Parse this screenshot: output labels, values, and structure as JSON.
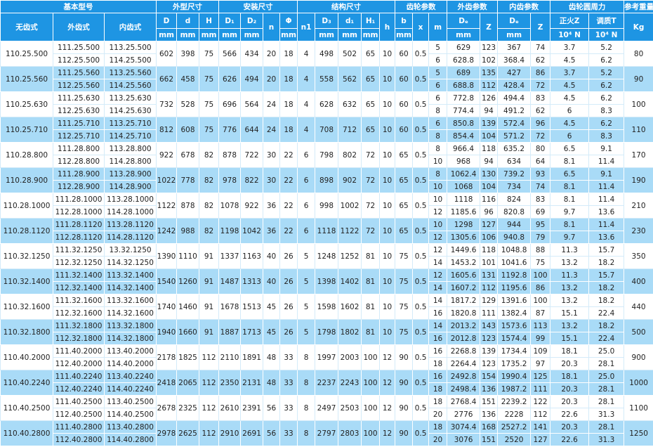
{
  "header": {
    "groups": [
      "基本型号",
      "外型尺寸",
      "安装尺寸",
      "结构尺寸",
      "齿轮参数",
      "外齿参数",
      "内齿参数",
      "齿轮圆周力",
      "参考重量"
    ],
    "columns": [
      "无齿式",
      "外齿式",
      "内齿式",
      "D",
      "d",
      "H",
      "D₁",
      "D₂",
      "n",
      "Φ",
      "n1",
      "D₃",
      "d₁",
      "H₁",
      "h",
      "b",
      "x",
      "m",
      "Dₑ",
      "Z",
      "Dₑ",
      "Z",
      "正火Z",
      "调质T",
      "Kg"
    ],
    "units": [
      "mm",
      "mm",
      "mm",
      "mm",
      "mm",
      "mm",
      "mm",
      "mm",
      "mm",
      "mm",
      "mm",
      "mm",
      "10⁴ N",
      "10⁴ N"
    ]
  },
  "rows": [
    [
      "110.25.500",
      [
        "111.25.500",
        "112.25.500"
      ],
      [
        "113.25.500",
        "114.25.500"
      ],
      "602",
      "398",
      "75",
      "566",
      "434",
      "20",
      "18",
      "4",
      "498",
      "502",
      "65",
      "10",
      "60",
      "0.5",
      [
        "5",
        "6"
      ],
      [
        "629",
        "628.8"
      ],
      [
        "123",
        "102"
      ],
      [
        "367",
        "368.4"
      ],
      [
        "74",
        "62"
      ],
      [
        "3.7",
        "4.5"
      ],
      [
        "5.2",
        "6.2"
      ],
      "80"
    ],
    [
      "110.25.560",
      [
        "111.25.560",
        "112.25.560"
      ],
      [
        "113.25.560",
        "114.25.560"
      ],
      "662",
      "458",
      "75",
      "626",
      "494",
      "20",
      "18",
      "4",
      "558",
      "562",
      "65",
      "10",
      "60",
      "0.5",
      [
        "5",
        "6"
      ],
      [
        "689",
        "688.8"
      ],
      [
        "135",
        "112"
      ],
      [
        "427",
        "428.4"
      ],
      [
        "86",
        "72"
      ],
      [
        "3.7",
        "4.5"
      ],
      [
        "5.2",
        "6.2"
      ],
      "90"
    ],
    [
      "110.25.630",
      [
        "111.25.630",
        "112.25.630"
      ],
      [
        "113.25.630",
        "114.25.630"
      ],
      "732",
      "528",
      "75",
      "696",
      "564",
      "24",
      "18",
      "4",
      "628",
      "632",
      "65",
      "10",
      "60",
      "0.5",
      [
        "6",
        "8"
      ],
      [
        "772.8",
        "774.4"
      ],
      [
        "126",
        "94"
      ],
      [
        "494.4",
        "491.2"
      ],
      [
        "83",
        "62"
      ],
      [
        "4.5",
        "6"
      ],
      [
        "6.2",
        "8.3"
      ],
      "100"
    ],
    [
      "110.25.710",
      [
        "111.25.710",
        "112.25.710"
      ],
      [
        "113.25.710",
        "114.25.710"
      ],
      "812",
      "608",
      "75",
      "776",
      "644",
      "24",
      "18",
      "4",
      "708",
      "712",
      "65",
      "10",
      "60",
      "0.5",
      [
        "6",
        "8"
      ],
      [
        "850.8",
        "854.4"
      ],
      [
        "139",
        "104"
      ],
      [
        "572.4",
        "571.2"
      ],
      [
        "96",
        "72"
      ],
      [
        "4.5",
        "6"
      ],
      [
        "6.2",
        "8.3"
      ],
      "110"
    ],
    [
      "110.28.800",
      [
        "111.28.800",
        "112.28.800"
      ],
      [
        "113.28.800",
        "114.28.800"
      ],
      "922",
      "678",
      "82",
      "878",
      "722",
      "30",
      "22",
      "6",
      "798",
      "802",
      "72",
      "10",
      "65",
      "0.5",
      [
        "8",
        "10"
      ],
      [
        "966.4",
        "968"
      ],
      [
        "118",
        "94"
      ],
      [
        "635.2",
        "634"
      ],
      [
        "80",
        "64"
      ],
      [
        "6.5",
        "8.1"
      ],
      [
        "9.1",
        "11.4"
      ],
      "170"
    ],
    [
      "110.28.900",
      [
        "111.28.900",
        "112.28.900"
      ],
      [
        "113.28.900",
        "114.28.900"
      ],
      "1022",
      "778",
      "82",
      "978",
      "822",
      "30",
      "22",
      "6",
      "898",
      "902",
      "72",
      "10",
      "65",
      "0.5",
      [
        "8",
        "10"
      ],
      [
        "1062.4",
        "1068"
      ],
      [
        "130",
        "104"
      ],
      [
        "739.2",
        "734"
      ],
      [
        "93",
        "74"
      ],
      [
        "6.5",
        "8.1"
      ],
      [
        "9.1",
        "11.4"
      ],
      "190"
    ],
    [
      "110.28.1000",
      [
        "111.28.1000",
        "112.28.1000"
      ],
      [
        "113.28.1000",
        "114.28.1000"
      ],
      "1122",
      "878",
      "82",
      "1078",
      "922",
      "36",
      "22",
      "6",
      "998",
      "1002",
      "72",
      "10",
      "65",
      "0.5",
      [
        "10",
        "12"
      ],
      [
        "1118",
        "1185.6"
      ],
      [
        "116",
        "96"
      ],
      [
        "824",
        "820.8"
      ],
      [
        "83",
        "69"
      ],
      [
        "8.1",
        "9.7"
      ],
      [
        "11.4",
        "13.6"
      ],
      "210"
    ],
    [
      "110.28.1120",
      [
        "111.28.1120",
        "112.28.1120"
      ],
      [
        "113.28.1120",
        "114.28.1120"
      ],
      "1242",
      "988",
      "82",
      "1198",
      "1042",
      "36",
      "22",
      "6",
      "1118",
      "1122",
      "72",
      "10",
      "65",
      "0.5",
      [
        "10",
        "12"
      ],
      [
        "1298",
        "1305.6"
      ],
      [
        "127",
        "106"
      ],
      [
        "944",
        "940.8"
      ],
      [
        "95",
        "79"
      ],
      [
        "8.1",
        "9.7"
      ],
      [
        "11.4",
        "13.6"
      ],
      "230"
    ],
    [
      "110.32.1250",
      [
        "111.32.1250",
        "112.32.1250"
      ],
      [
        "13.32.1250",
        "114.32.1250"
      ],
      "1390",
      "1110",
      "91",
      "1337",
      "1163",
      "40",
      "26",
      "5",
      "1248",
      "1252",
      "81",
      "10",
      "75",
      "0.5",
      [
        "12",
        "14"
      ],
      [
        "1449.6",
        "1453.2"
      ],
      [
        "118",
        "101"
      ],
      [
        "1048.8",
        "1041.6"
      ],
      [
        "88",
        "75"
      ],
      [
        "11.3",
        "13.2"
      ],
      [
        "15.7",
        "18.2"
      ],
      "350"
    ],
    [
      "110.32.1400",
      [
        "111.32.1400",
        "112.32.1400"
      ],
      [
        "113.32.1400",
        "114.32.1400"
      ],
      "1540",
      "1260",
      "91",
      "1487",
      "1313",
      "40",
      "26",
      "5",
      "1398",
      "1402",
      "81",
      "10",
      "75",
      "0.5",
      [
        "12",
        "14"
      ],
      [
        "1605.6",
        "1607.2"
      ],
      [
        "131",
        "112"
      ],
      [
        "1192.8",
        "1195.6"
      ],
      [
        "100",
        "86"
      ],
      [
        "11.3",
        "13.2"
      ],
      [
        "15.7",
        "18.2"
      ],
      "400"
    ],
    [
      "110.32.1600",
      [
        "111.32.1600",
        "112.32.1600"
      ],
      [
        "113.32.1600",
        "114.32.1600"
      ],
      "1740",
      "1460",
      "91",
      "1678",
      "1513",
      "45",
      "26",
      "5",
      "1598",
      "1602",
      "81",
      "10",
      "75",
      "0.5",
      [
        "14",
        "16"
      ],
      [
        "1817.2",
        "1820.8"
      ],
      [
        "129",
        "111"
      ],
      [
        "1391.6",
        "1382.4"
      ],
      [
        "100",
        "87"
      ],
      [
        "13.2",
        "15.1"
      ],
      [
        "18.2",
        "22.4"
      ],
      "440"
    ],
    [
      "110.32.1800",
      [
        "111.32.1800",
        "112.32.1800"
      ],
      [
        "113.32.1800",
        "114.32.1800"
      ],
      "1940",
      "1660",
      "91",
      "1887",
      "1713",
      "45",
      "26",
      "5",
      "1798",
      "1802",
      "81",
      "10",
      "75",
      "0.5",
      [
        "14",
        "16"
      ],
      [
        "2013.2",
        "2012.8"
      ],
      [
        "143",
        "123"
      ],
      [
        "1573.6",
        "1574.4"
      ],
      [
        "113",
        "99"
      ],
      [
        "13.2",
        "15.1"
      ],
      [
        "18.2",
        "22.4"
      ],
      "500"
    ],
    [
      "110.40.2000",
      [
        "111.40.2000",
        "112.40.2000"
      ],
      [
        "113.40.2000",
        "114.40.2000"
      ],
      "2178",
      "1825",
      "112",
      "2110",
      "1891",
      "48",
      "33",
      "8",
      "1997",
      "2003",
      "100",
      "12",
      "90",
      "0.5",
      [
        "16",
        "18"
      ],
      [
        "2268.8",
        "2264.4"
      ],
      [
        "139",
        "123"
      ],
      [
        "1734.4",
        "1735.2"
      ],
      [
        "109",
        "97"
      ],
      [
        "18.1",
        "20.3"
      ],
      [
        "25.0",
        "28.1"
      ],
      "900"
    ],
    [
      "110.40.2240",
      [
        "111.40.2240",
        "112.40.2240"
      ],
      [
        "113.40.2240",
        "114.40.2240"
      ],
      "2418",
      "2065",
      "112",
      "2350",
      "2131",
      "48",
      "33",
      "8",
      "2237",
      "2243",
      "100",
      "12",
      "90",
      "0.5",
      [
        "16",
        "18"
      ],
      [
        "2492.8",
        "2498.4"
      ],
      [
        "154",
        "136"
      ],
      [
        "1990.4",
        "1987.2"
      ],
      [
        "125",
        "111"
      ],
      [
        "18.1",
        "20.3"
      ],
      [
        "25.0",
        "28.1"
      ],
      "1000"
    ],
    [
      "110.40.2500",
      [
        "111.40.2500",
        "112.40.2500"
      ],
      [
        "113.40.2500",
        "114.40.2500"
      ],
      "2678",
      "2325",
      "112",
      "2610",
      "2391",
      "56",
      "33",
      "8",
      "2497",
      "2503",
      "100",
      "12",
      "90",
      "0.5",
      [
        "18",
        "20"
      ],
      [
        "2768.4",
        "2776"
      ],
      [
        "151",
        "136"
      ],
      [
        "2239.2",
        "2228"
      ],
      [
        "122",
        "112"
      ],
      [
        "20.3",
        "22.6"
      ],
      [
        "28.1",
        "31.3"
      ],
      "1100"
    ],
    [
      "110.40.2800",
      [
        "111.40.2800",
        "112.40.2800"
      ],
      [
        "113.40.2800",
        "114.40.2800"
      ],
      "2978",
      "2625",
      "112",
      "2910",
      "2691",
      "56",
      "33",
      "8",
      "2797",
      "2803",
      "100",
      "12",
      "90",
      "0.5",
      [
        "18",
        "20"
      ],
      [
        "3074.4",
        "3076"
      ],
      [
        "168",
        "151"
      ],
      [
        "2527.2",
        "2520"
      ],
      [
        "141",
        "127"
      ],
      [
        "20.3",
        "22.6"
      ],
      [
        "28.1",
        "31.3"
      ],
      "1250"
    ]
  ]
}
